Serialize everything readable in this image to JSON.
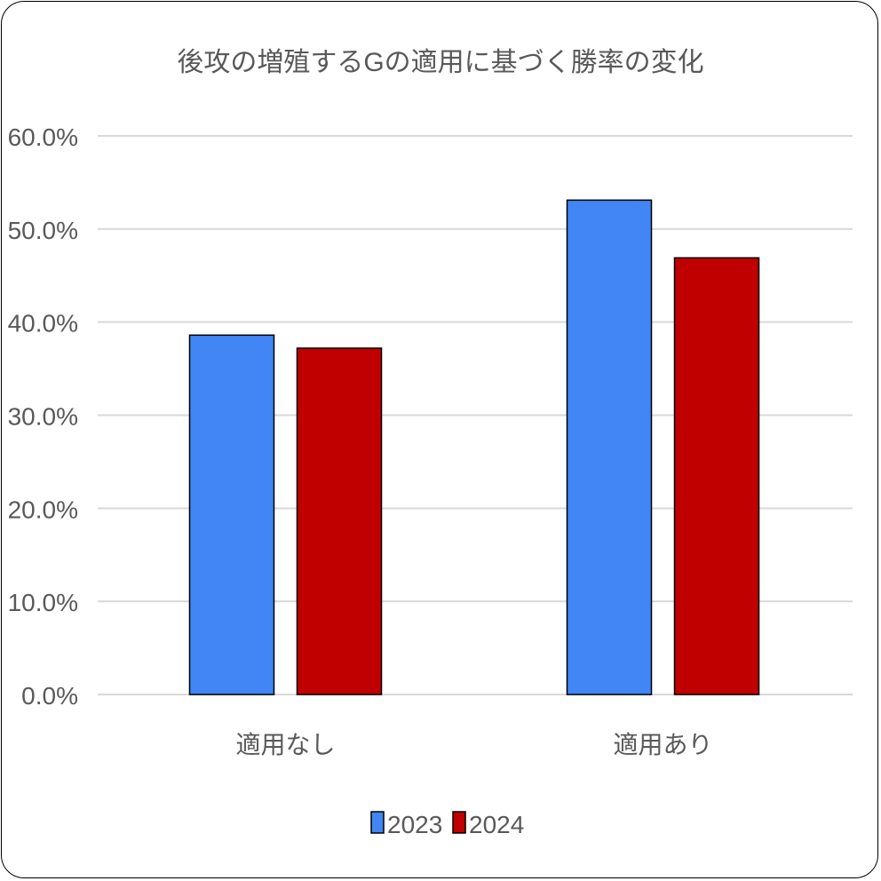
{
  "chart_data": {
    "type": "bar",
    "title": "後攻の増殖するGの適用に基づく勝率の変化",
    "categories": [
      "適用なし",
      "適用あり"
    ],
    "series": [
      {
        "name": "2023",
        "values": [
          38.6,
          53.1
        ],
        "color": "#4285F4"
      },
      {
        "name": "2024",
        "values": [
          37.2,
          46.9
        ],
        "color": "#C00000"
      }
    ],
    "ylim": [
      0,
      60
    ],
    "yticks": [
      "0.0%",
      "10.0%",
      "20.0%",
      "30.0%",
      "40.0%",
      "50.0%",
      "60.0%"
    ],
    "grid": true,
    "legend": "bottom",
    "xlabel": "",
    "ylabel": ""
  }
}
